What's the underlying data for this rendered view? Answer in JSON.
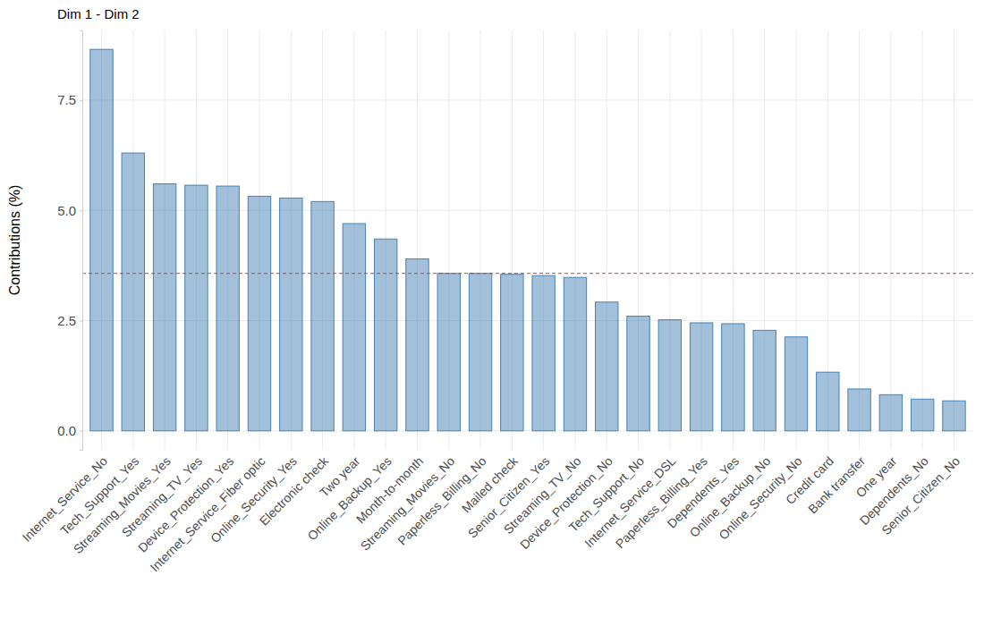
{
  "chart_data": {
    "type": "bar",
    "title": "Dim 1 - Dim 2",
    "y_label": "Contributions (%)",
    "categories": [
      "Internet_Service_No",
      "Tech_Support_Yes",
      "Streaming_Movies_Yes",
      "Streaming_TV_Yes",
      "Device_Protection_Yes",
      "Internet_Service_Fiber optic",
      "Online_Security_Yes",
      "Electronic check",
      "Two year",
      "Online_Backup_Yes",
      "Month-to-month",
      "Streaming_Movies_No",
      "Paperless_Billing_No",
      "Mailed check",
      "Senior_Citizen_Yes",
      "Streaming_TV_No",
      "Device_Protection_No",
      "Tech_Support_No",
      "Internet_Service_DSL",
      "Paperless_Billing_Yes",
      "Dependents_Yes",
      "Online_Backup_No",
      "Online_Security_No",
      "Credit card",
      "Bank transfer",
      "One year",
      "Dependents_No",
      "Senior_Citizen_No"
    ],
    "values": [
      8.65,
      6.3,
      5.6,
      5.57,
      5.55,
      5.32,
      5.28,
      5.2,
      4.7,
      4.35,
      3.9,
      3.57,
      3.57,
      3.55,
      3.52,
      3.48,
      2.92,
      2.6,
      2.52,
      2.45,
      2.43,
      2.28,
      2.13,
      1.33,
      0.95,
      0.82,
      0.72,
      0.68
    ],
    "color": "#4682b4",
    "hline": 3.57,
    "ylim": [
      -0.43,
      9.08
    ],
    "yticks": [
      {
        "value": 0,
        "label": "0.0"
      },
      {
        "value": 2.5,
        "label": "2.5"
      },
      {
        "value": 5,
        "label": "5.0"
      },
      {
        "value": 7.5,
        "label": "7.5"
      }
    ],
    "grid": true
  }
}
